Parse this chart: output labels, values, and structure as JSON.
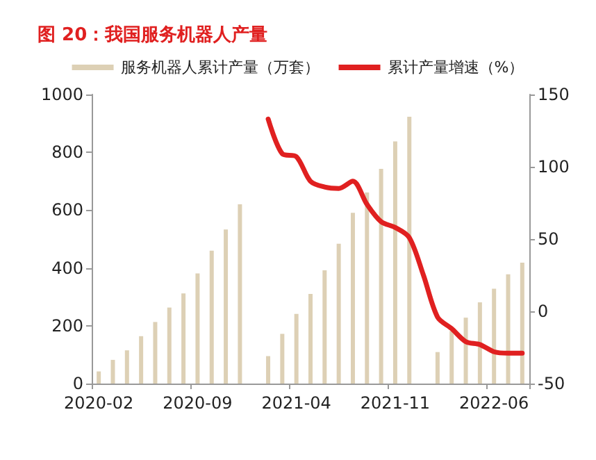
{
  "chart_data": {
    "type": "bar",
    "title": "图 20：我国服务机器人产量",
    "categories": [
      "2020-02",
      null,
      null,
      null,
      null,
      null,
      null,
      "2020-09",
      null,
      null,
      null,
      null,
      null,
      null,
      "2021-04",
      null,
      null,
      null,
      null,
      null,
      null,
      "2021-11",
      null,
      null,
      null,
      null,
      null,
      null,
      "2022-06",
      null,
      null
    ],
    "series": [
      {
        "name": "服务机器人累计产量（万套）",
        "color": "#ddd0b5",
        "values": [
          42,
          82,
          115,
          164,
          213,
          263,
          312,
          381,
          460,
          533,
          620,
          null,
          95,
          172,
          241,
          310,
          392,
          484,
          591,
          661,
          743,
          838,
          923,
          null,
          109,
          182,
          228,
          281,
          328,
          378,
          418
        ]
      },
      {
        "name": "累计产量增速（%）",
        "type": "line",
        "axis": "y2",
        "color": "#e02020",
        "values": [
          null,
          null,
          null,
          null,
          null,
          null,
          null,
          null,
          null,
          null,
          null,
          null,
          133,
          109,
          107,
          90,
          86,
          85,
          90,
          74,
          62,
          58,
          51,
          25,
          -4,
          -12,
          -21,
          -23,
          -28,
          -29,
          -29
        ]
      }
    ],
    "ylim": [
      0,
      1000
    ],
    "yticks": [
      0,
      200,
      400,
      600,
      800,
      1000
    ],
    "y2lim": [
      -50,
      150
    ],
    "y2ticks": [
      -50,
      0,
      50,
      100,
      150
    ],
    "grid": false,
    "legend": "top",
    "marker": "none",
    "line_style": "solid"
  }
}
